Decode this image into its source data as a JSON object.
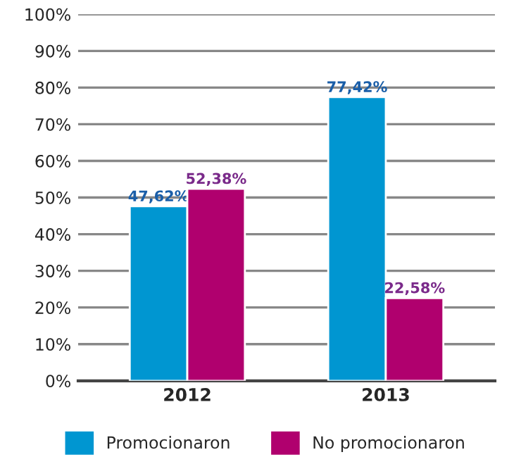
{
  "chart_data": {
    "type": "bar",
    "categories": [
      "2012",
      "2013"
    ],
    "series": [
      {
        "name": "Promocionaron",
        "color": "#0096d1",
        "values": [
          47.62,
          77.42
        ],
        "value_labels": [
          "47,62%",
          "77,42%"
        ]
      },
      {
        "name": "No promocionaron",
        "color": "#b0006e",
        "values": [
          52.38,
          22.58
        ],
        "value_labels": [
          "52,38%",
          "22,58%"
        ]
      }
    ],
    "ylim": [
      0,
      100
    ],
    "yticks": [
      {
        "value": 0,
        "label": "0%"
      },
      {
        "value": 10,
        "label": "10%"
      },
      {
        "value": 20,
        "label": "20%"
      },
      {
        "value": 30,
        "label": "30%"
      },
      {
        "value": 40,
        "label": "40%"
      },
      {
        "value": 50,
        "label": "50%"
      },
      {
        "value": 60,
        "label": "60%"
      },
      {
        "value": 70,
        "label": "70%"
      },
      {
        "value": 80,
        "label": "80%"
      },
      {
        "value": 90,
        "label": "90%"
      },
      {
        "value": 100,
        "label": "100%"
      }
    ],
    "grid": "y",
    "legend": "bottom"
  }
}
